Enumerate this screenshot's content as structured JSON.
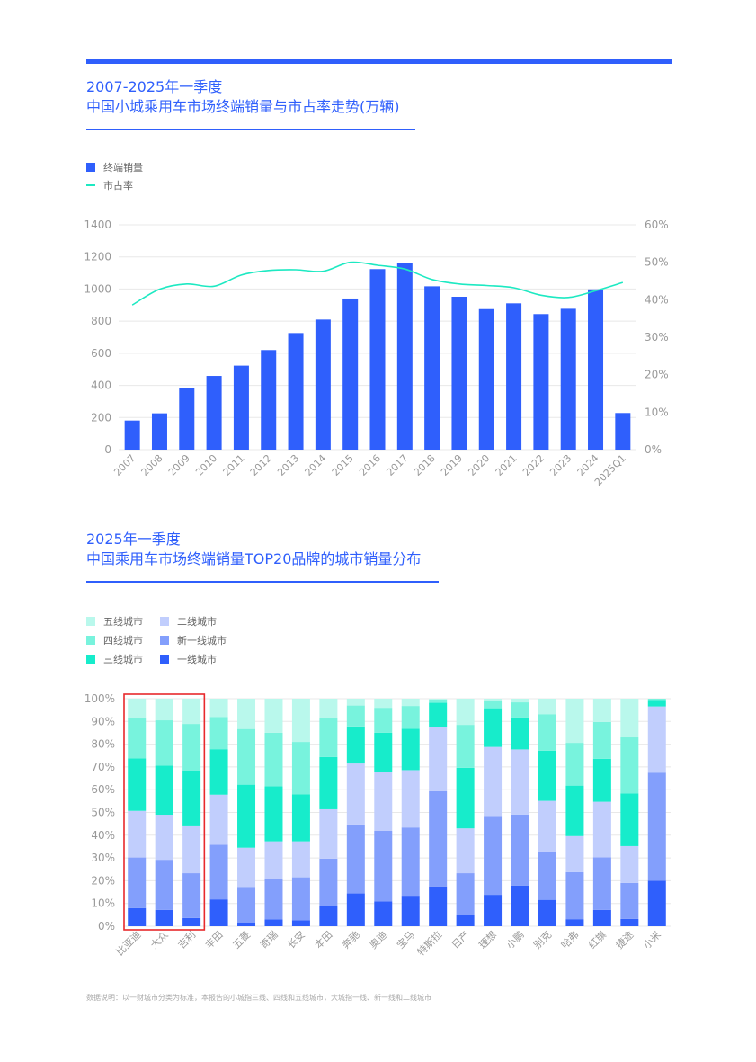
{
  "colors": {
    "accent": "#2f5ffc",
    "line": "#1de9c2",
    "tier1": "#2f5ffc",
    "new_tier1": "#839ffc",
    "tier2": "#c1cefd",
    "tier3": "#17eccb",
    "tier4": "#78f3dd",
    "tier5": "#b9f8ec",
    "highlight_box": "#e8292c"
  },
  "chart1": {
    "title_line1": "2007-2025年一季度",
    "title_line2": "中国小城乘用车市场终端销量与市占率走势(万辆)"
  },
  "chart2": {
    "title_line1": "2025年一季度",
    "title_line2": "中国乘用车市场终端销量TOP20品牌的城市销量分布"
  },
  "footnote": "数据说明：以一财城市分类为标准，本报告的小城指三线、四线和五线城市，大城指一线、新一线和二线城市",
  "chart_data": [
    {
      "type": "bar",
      "title": "2007-2025年一季度 中国小城乘用车市场终端销量与市占率走势(万辆)",
      "categories": [
        "2007",
        "2008",
        "2009",
        "2010",
        "2011",
        "2012",
        "2013",
        "2014",
        "2015",
        "2016",
        "2017",
        "2018",
        "2019",
        "2020",
        "2021",
        "2022",
        "2023",
        "2024",
        "2025Q1"
      ],
      "series": [
        {
          "name": "终端销量",
          "type": "bar",
          "axis": "left",
          "values": [
            181,
            226,
            385,
            459,
            523,
            620,
            726,
            810,
            941,
            1124,
            1163,
            1017,
            952,
            875,
            911,
            844,
            877,
            998,
            228
          ]
        },
        {
          "name": "市占率",
          "type": "line",
          "axis": "right",
          "values": [
            38.6,
            42.8,
            44.2,
            43.6,
            46.6,
            47.8,
            48.0,
            47.6,
            50.0,
            49.2,
            48.2,
            45.4,
            44.2,
            43.8,
            43.2,
            41.2,
            40.6,
            42.4,
            44.6
          ]
        }
      ],
      "ylim": [
        0,
        1400
      ],
      "yticks": [
        "0",
        "200",
        "400",
        "600",
        "800",
        "1000",
        "1200",
        "1400"
      ],
      "y2lim": [
        0,
        60
      ],
      "y2ticks": [
        "0%",
        "10%",
        "20%",
        "30%",
        "40%",
        "50%",
        "60%"
      ],
      "grid": true,
      "legend_position": "top-left"
    },
    {
      "type": "bar",
      "stacked": true,
      "percent": true,
      "title": "2025年一季度 中国乘用车市场终端销量TOP20品牌的城市销量分布",
      "categories": [
        "比亚迪",
        "大众",
        "吉利",
        "丰田",
        "五菱",
        "奇瑞",
        "长安",
        "本田",
        "奔驰",
        "奥迪",
        "宝马",
        "特斯拉",
        "日产",
        "理想",
        "小鹏",
        "别克",
        "哈弗",
        "红旗",
        "捷途",
        "小米"
      ],
      "series": [
        {
          "name": "一线城市",
          "key": "tier1",
          "values": [
            8.0,
            7.2,
            3.6,
            11.8,
            1.7,
            3.0,
            2.6,
            9.0,
            14.4,
            10.9,
            13.4,
            17.5,
            5.1,
            13.8,
            17.8,
            11.6,
            3.1,
            7.2,
            3.2,
            20.0
          ]
        },
        {
          "name": "新一线城市",
          "key": "new_tier1",
          "values": [
            22.2,
            22.0,
            19.7,
            24.0,
            15.6,
            17.8,
            18.9,
            20.7,
            30.3,
            31.0,
            30.0,
            41.8,
            18.2,
            34.7,
            31.3,
            21.3,
            20.7,
            23.1,
            15.8,
            47.5
          ]
        },
        {
          "name": "二线城市",
          "key": "tier2",
          "values": [
            20.5,
            19.8,
            21.0,
            22.0,
            17.2,
            16.5,
            15.8,
            21.7,
            26.8,
            25.8,
            25.2,
            28.4,
            19.7,
            30.3,
            28.6,
            22.2,
            15.8,
            24.4,
            16.2,
            29.1
          ]
        },
        {
          "name": "三线城市",
          "key": "tier3",
          "values": [
            23.1,
            21.6,
            24.2,
            20.0,
            27.7,
            24.2,
            20.6,
            23.0,
            16.3,
            17.3,
            18.2,
            10.5,
            26.6,
            17.0,
            14.1,
            22.0,
            22.2,
            18.9,
            23.2,
            2.9
          ]
        },
        {
          "name": "四线城市",
          "key": "tier4",
          "values": [
            17.5,
            19.9,
            20.4,
            14.2,
            24.5,
            23.5,
            23.1,
            16.9,
            9.2,
            11.0,
            10.0,
            1.5,
            18.9,
            3.4,
            6.6,
            16.1,
            18.8,
            16.2,
            24.6,
            0.5
          ]
        },
        {
          "name": "五线城市",
          "key": "tier5",
          "values": [
            8.7,
            9.5,
            11.1,
            8.0,
            13.3,
            15.0,
            19.0,
            8.7,
            3.0,
            4.0,
            3.2,
            0.3,
            11.5,
            0.8,
            1.6,
            6.8,
            19.4,
            10.2,
            17.0,
            0.0
          ]
        }
      ],
      "legend_order": [
        "五线城市",
        "二线城市",
        "四线城市",
        "新一线城市",
        "三线城市",
        "一线城市"
      ],
      "ylim": [
        0,
        100
      ],
      "yticks": [
        "0%",
        "10%",
        "20%",
        "30%",
        "40%",
        "50%",
        "60%",
        "70%",
        "80%",
        "90%",
        "100%"
      ],
      "highlighted": [
        "比亚迪",
        "大众",
        "吉利"
      ],
      "grid": true,
      "legend_position": "top-left"
    }
  ]
}
